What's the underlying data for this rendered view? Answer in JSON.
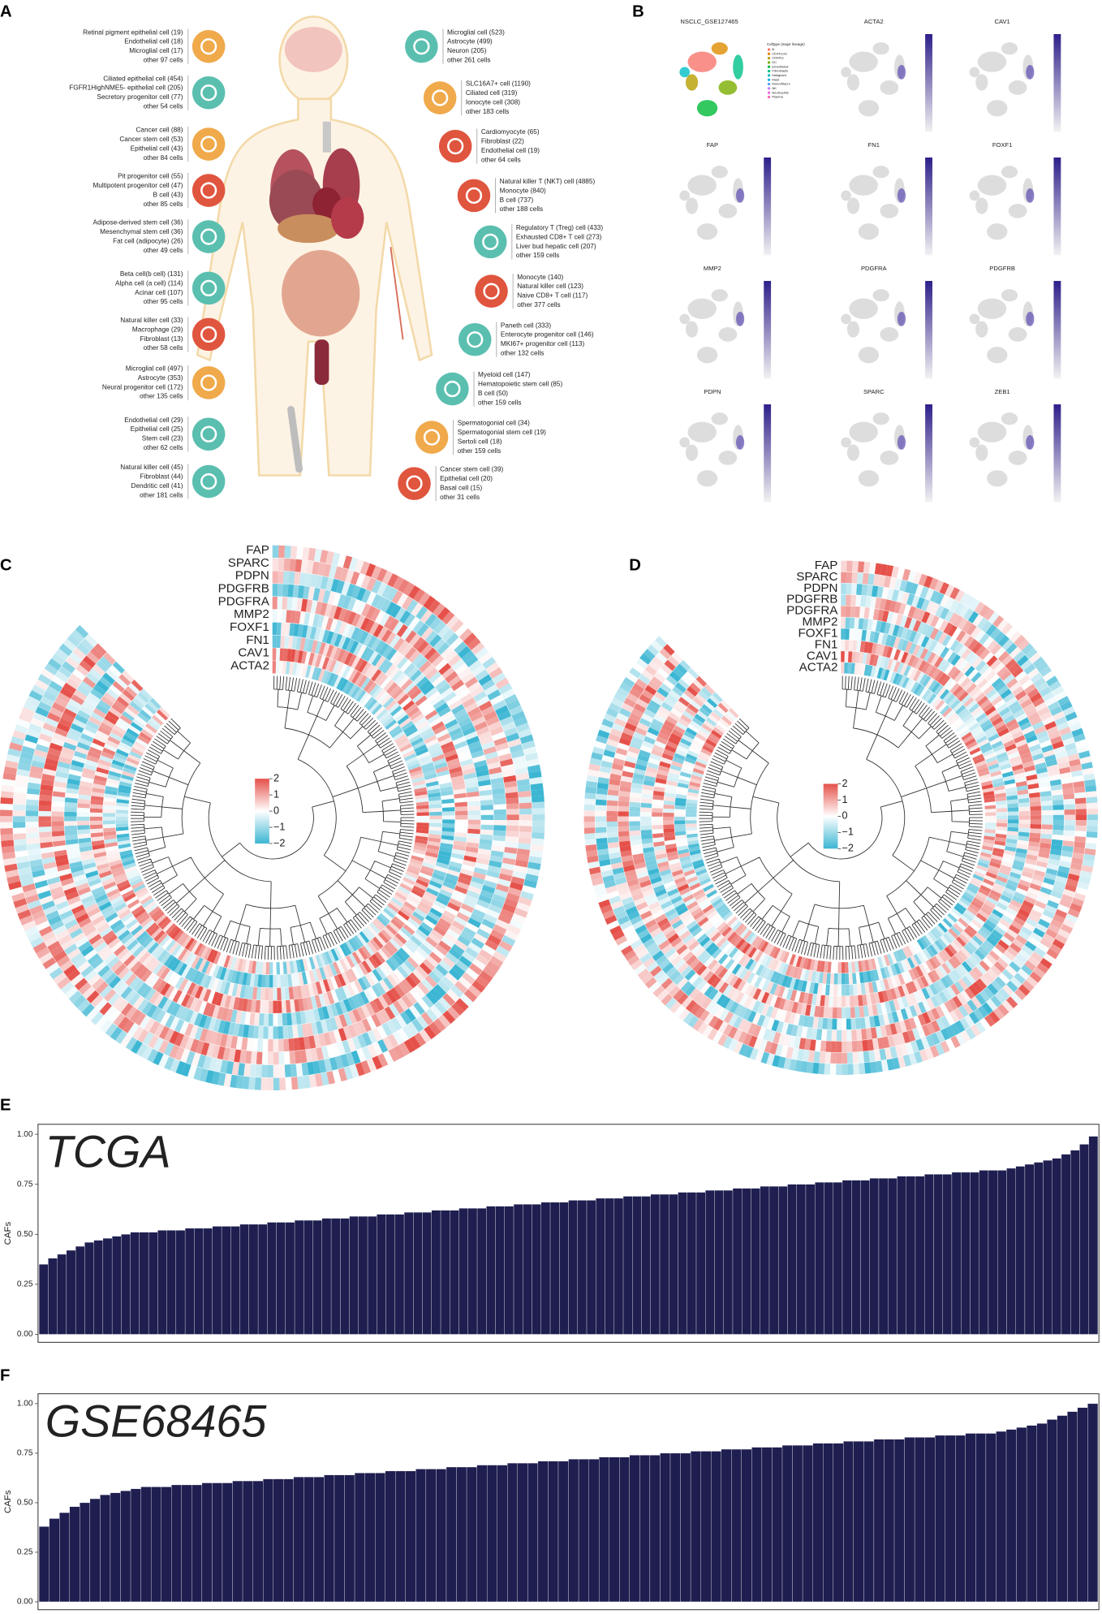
{
  "panel_labels": [
    "A",
    "B",
    "C",
    "D",
    "E",
    "F"
  ],
  "body_map": {
    "left": [
      {
        "color": "#f0a94b",
        "lines": [
          "Retinal pigment epithelial cell (19)",
          "Endothelial cell (18)",
          "Microglial cell (17)",
          "other 97 cells"
        ]
      },
      {
        "color": "#5bbfb0",
        "lines": [
          "Ciliated epithelial cell (454)",
          "FGFR1HighNME5- epithelial cell (205)",
          "Secretory progenitor cell (77)",
          "other 54 cells"
        ]
      },
      {
        "color": "#f0a94b",
        "lines": [
          "Cancer cell (88)",
          "Cancer stem cell (53)",
          "Epithelial cell (43)",
          "other 84 cells"
        ]
      },
      {
        "color": "#e0553e",
        "lines": [
          "Pit progenitor cell (55)",
          "Multipotent progenitor cell (47)",
          "B cell (43)",
          "other 85 cells"
        ]
      },
      {
        "color": "#5bbfb0",
        "lines": [
          "Adipose-derived stem cell (36)",
          "Mesenchymal stem cell (36)",
          "Fat cell (adipocyte) (26)",
          "other 49 cells"
        ]
      },
      {
        "color": "#5bbfb0",
        "lines": [
          "Beta cell(b cell) (131)",
          "Alpha cell (a cell) (114)",
          "Acinar cell (107)",
          "other 95 cells"
        ]
      },
      {
        "color": "#e0553e",
        "lines": [
          "Natural killer cell (33)",
          "Macrophage (29)",
          "Fibroblast (13)",
          "other 58 cells"
        ]
      },
      {
        "color": "#f0a94b",
        "lines": [
          "Microglial cell (497)",
          "Astrocyte (353)",
          "Neural progenitor cell (172)",
          "other 135 cells"
        ]
      },
      {
        "color": "#5bbfb0",
        "lines": [
          "Endothelial cell (29)",
          "Epithelial cell (25)",
          "Stem cell (23)",
          "other 62 cells"
        ]
      },
      {
        "color": "#5bbfb0",
        "lines": [
          "Natural killer cell (45)",
          "Fibroblast (44)",
          "Dendritic cell (41)",
          "other 181 cells"
        ]
      }
    ],
    "right": [
      {
        "color": "#5bbfb0",
        "lines": [
          "Microglial cell (523)",
          "Astrocyte (499)",
          "Neuron (205)",
          "other 261 cells"
        ]
      },
      {
        "color": "#f0a94b",
        "lines": [
          "SLC16A7+ cell (1190)",
          "Ciliated cell (319)",
          "Ionocyte cell (308)",
          "other 183 cells"
        ]
      },
      {
        "color": "#e0553e",
        "lines": [
          "Cardiomyocyte (65)",
          "Fibroblast (22)",
          "Endothelial cell (19)",
          "other 64 cells"
        ]
      },
      {
        "color": "#e0553e",
        "lines": [
          "Natural killer T (NKT) cell (4885)",
          "Monocyte (840)",
          "B cell (737)",
          "other 188 cells"
        ]
      },
      {
        "color": "#5bbfb0",
        "lines": [
          "Regulatory T (Treg) cell (433)",
          "Exhausted CD8+ T cell (273)",
          "Liver bud hepatic cell (207)",
          "other 159 cells"
        ]
      },
      {
        "color": "#e0553e",
        "lines": [
          "Monocyte (140)",
          "Natural killer cell (123)",
          "Naive CD8+ T cell (117)",
          "other 377 cells"
        ]
      },
      {
        "color": "#5bbfb0",
        "lines": [
          "Paneth cell (333)",
          "Enterocyte progenitor cell (146)",
          "MKI67+ progenitor cell (113)",
          "other 132 cells"
        ]
      },
      {
        "color": "#5bbfb0",
        "lines": [
          "Myeloid cell (147)",
          "Hematopoietic stem cell (85)",
          "B cell (50)",
          "other 159 cells"
        ]
      },
      {
        "color": "#f0a94b",
        "lines": [
          "Spermatogonial cell (34)",
          "Spermatogonial stem cell (19)",
          "Sertoli cell (18)",
          "other 159 cells"
        ]
      },
      {
        "color": "#e0553e",
        "lines": [
          "Cancer stem cell (39)",
          "Epithelial cell (20)",
          "Basal cell (15)",
          "other 31 cells"
        ]
      }
    ]
  },
  "umap": {
    "title": "NSCLC_GSE127465",
    "legend_title": "Celltype (major lineage)",
    "legend_items": [
      {
        "name": "B",
        "color": "#f8766d"
      },
      {
        "name": "CD4Tconv",
        "color": "#de8c00"
      },
      {
        "name": "CD8Tex",
        "color": "#b79f00"
      },
      {
        "name": "DC",
        "color": "#7cae00"
      },
      {
        "name": "Endothelial",
        "color": "#00ba38"
      },
      {
        "name": "Fibroblasts",
        "color": "#00c08b"
      },
      {
        "name": "Malignant",
        "color": "#00bfc4"
      },
      {
        "name": "Mast",
        "color": "#00b4f0"
      },
      {
        "name": "Mono/Macro",
        "color": "#619cff"
      },
      {
        "name": "NK",
        "color": "#c77cff"
      },
      {
        "name": "Neutrophils",
        "color": "#f564e3"
      },
      {
        "name": "Plasma",
        "color": "#ff64b0"
      }
    ],
    "genes": [
      "ACTA2",
      "CAV1",
      "FAP",
      "FN1",
      "FOXF1",
      "MMP2",
      "PDGFRA",
      "PDGFRB",
      "PDPN",
      "SPARC",
      "ZEB1"
    ]
  },
  "heatmaps": [
    {
      "genes": [
        "FAP",
        "SPARC",
        "PDPN",
        "PDGFRB",
        "PDGFRA",
        "MMP2",
        "FOXF1",
        "FN1",
        "CAV1",
        "ACTA2"
      ],
      "legend_ticks": [
        2,
        1,
        0,
        {
          "value": -1,
          "label": "−1"
        },
        {
          "value": -2,
          "label": "−2"
        }
      ]
    },
    {
      "genes": [
        "FAP",
        "SPARC",
        "PDPN",
        "PDGFRB",
        "PDGFRA",
        "MMP2",
        "FOXF1",
        "FN1",
        "CAV1",
        "ACTA2"
      ],
      "legend_ticks": [
        2,
        1,
        0,
        {
          "value": -1,
          "label": "−1"
        },
        {
          "value": -2,
          "label": "−2"
        }
      ]
    }
  ],
  "chart_data": [
    {
      "type": "bar",
      "title": "TCGA",
      "ylabel": "CAFs",
      "color": "#1e1e50",
      "ylim": [
        -0.04,
        1.05
      ],
      "yticks": [
        {
          "value": 0,
          "label": "0.00"
        },
        {
          "value": 0.25,
          "label": "0.25"
        },
        {
          "value": 0.5,
          "label": "0.50"
        },
        {
          "value": 0.75,
          "label": "0.75"
        },
        {
          "value": 1,
          "label": "1.00"
        }
      ],
      "values": [
        0.35,
        0.38,
        0.4,
        0.42,
        0.44,
        0.46,
        0.47,
        0.48,
        0.49,
        0.5,
        0.51,
        0.51,
        0.51,
        0.52,
        0.52,
        0.52,
        0.53,
        0.53,
        0.53,
        0.54,
        0.54,
        0.54,
        0.55,
        0.55,
        0.55,
        0.56,
        0.56,
        0.56,
        0.57,
        0.57,
        0.57,
        0.58,
        0.58,
        0.58,
        0.59,
        0.59,
        0.59,
        0.6,
        0.6,
        0.6,
        0.61,
        0.61,
        0.61,
        0.62,
        0.62,
        0.62,
        0.63,
        0.63,
        0.63,
        0.64,
        0.64,
        0.64,
        0.65,
        0.65,
        0.65,
        0.66,
        0.66,
        0.66,
        0.67,
        0.67,
        0.67,
        0.68,
        0.68,
        0.68,
        0.69,
        0.69,
        0.69,
        0.7,
        0.7,
        0.7,
        0.71,
        0.71,
        0.71,
        0.72,
        0.72,
        0.72,
        0.73,
        0.73,
        0.73,
        0.74,
        0.74,
        0.74,
        0.75,
        0.75,
        0.75,
        0.76,
        0.76,
        0.76,
        0.77,
        0.77,
        0.77,
        0.78,
        0.78,
        0.78,
        0.79,
        0.79,
        0.79,
        0.8,
        0.8,
        0.8,
        0.81,
        0.81,
        0.81,
        0.82,
        0.82,
        0.82,
        0.83,
        0.84,
        0.85,
        0.86,
        0.87,
        0.88,
        0.9,
        0.92,
        0.95,
        0.99
      ]
    },
    {
      "type": "bar",
      "title": "GSE68465",
      "ylabel": "CAFs",
      "color": "#1e1e50",
      "ylim": [
        -0.04,
        1.05
      ],
      "yticks": [
        {
          "value": 0,
          "label": "0.00"
        },
        {
          "value": 0.25,
          "label": "0.25"
        },
        {
          "value": 0.5,
          "label": "0.50"
        },
        {
          "value": 0.75,
          "label": "0.75"
        },
        {
          "value": 1,
          "label": "1.00"
        }
      ],
      "values": [
        0.38,
        0.42,
        0.45,
        0.48,
        0.5,
        0.52,
        0.54,
        0.55,
        0.56,
        0.57,
        0.58,
        0.58,
        0.58,
        0.59,
        0.59,
        0.59,
        0.6,
        0.6,
        0.6,
        0.61,
        0.61,
        0.61,
        0.62,
        0.62,
        0.62,
        0.63,
        0.63,
        0.63,
        0.64,
        0.64,
        0.64,
        0.65,
        0.65,
        0.65,
        0.66,
        0.66,
        0.66,
        0.67,
        0.67,
        0.67,
        0.68,
        0.68,
        0.68,
        0.69,
        0.69,
        0.69,
        0.7,
        0.7,
        0.7,
        0.71,
        0.71,
        0.71,
        0.72,
        0.72,
        0.72,
        0.73,
        0.73,
        0.73,
        0.74,
        0.74,
        0.74,
        0.75,
        0.75,
        0.75,
        0.76,
        0.76,
        0.76,
        0.77,
        0.77,
        0.77,
        0.78,
        0.78,
        0.78,
        0.79,
        0.79,
        0.79,
        0.8,
        0.8,
        0.8,
        0.81,
        0.81,
        0.81,
        0.82,
        0.82,
        0.82,
        0.83,
        0.83,
        0.83,
        0.84,
        0.84,
        0.84,
        0.85,
        0.85,
        0.85,
        0.86,
        0.87,
        0.88,
        0.89,
        0.9,
        0.92,
        0.94,
        0.96,
        0.98,
        1.0
      ]
    }
  ]
}
